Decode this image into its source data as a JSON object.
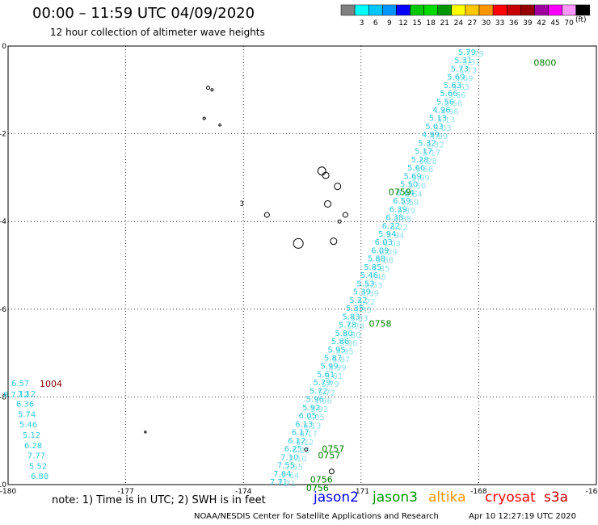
{
  "header": {
    "title": "00:00 – 11:59 UTC 04/09/2020",
    "subtitle": "12 hour collection of altimeter wave heights"
  },
  "color_legend": {
    "unit": "(ft)",
    "swatches": [
      {
        "label": "",
        "color": "#808080"
      },
      {
        "label": "3",
        "color": "#00ffff"
      },
      {
        "label": "6",
        "color": "#00c8ff"
      },
      {
        "label": "9",
        "color": "#0096ff"
      },
      {
        "label": "12",
        "color": "#0000ff"
      },
      {
        "label": "15",
        "color": "#00c800"
      },
      {
        "label": "18",
        "color": "#00dc00"
      },
      {
        "label": "21",
        "color": "#009600"
      },
      {
        "label": "24",
        "color": "#ffff00"
      },
      {
        "label": "27",
        "color": "#ffc800"
      },
      {
        "label": "30",
        "color": "#ff9600"
      },
      {
        "label": "33",
        "color": "#ff0000"
      },
      {
        "label": "36",
        "color": "#c80000"
      },
      {
        "label": "39",
        "color": "#960000"
      },
      {
        "label": "42",
        "color": "#a000a0"
      },
      {
        "label": "45",
        "color": "#ff00ff"
      },
      {
        "label": "70",
        "color": "#ff96ff"
      },
      {
        "label": "",
        "color": "#000000"
      }
    ]
  },
  "map": {
    "lon_range": [
      -180,
      -165
    ],
    "lat_range": [
      -10,
      0
    ],
    "x_ticks": [
      "-180",
      "-177",
      "-174",
      "-171",
      "-168",
      "-16"
    ],
    "y_ticks": [
      "0",
      "-2",
      "-4",
      "-6",
      "-8",
      "-10"
    ],
    "grid": "dotted",
    "track_color": "#33c8dc",
    "time_color": "#008000",
    "track_values": [
      "5.79",
      "5.31",
      "5.73",
      "5.69",
      "5.63",
      "5.66",
      "5.56",
      "4.96",
      "5.13",
      "5.03",
      "4.99",
      "5.32",
      "5.17",
      "5.28",
      "5.66",
      "5.69",
      "5.50",
      "6.64",
      "6.59",
      "6.39",
      "6.38",
      "6.22",
      "5.94",
      "6.03",
      "6.09",
      "5.88",
      "5.85",
      "5.46",
      "5.53",
      "5.39",
      "5.22",
      "5.35",
      "5.83",
      "5.78",
      "5.80",
      "5.86",
      "5.95",
      "5.87",
      "5.99",
      "5.61",
      "5.79",
      "5.72",
      "5.96",
      "5.92",
      "6.05",
      "6.13",
      "6.17",
      "6.12",
      "6.25",
      "7.10",
      "7.55",
      "7.64",
      "7.71"
    ],
    "west_values": [
      "6.57",
      "7.12",
      "6.36",
      "5.74",
      "5.46",
      "5.12",
      "6.28",
      "7.77",
      "5.52",
      "6.88"
    ],
    "time_labels": [
      {
        "text": "0800",
        "lon": -166.6,
        "lat": -0.45
      },
      {
        "text": "0759",
        "lon": -170.3,
        "lat": -3.4
      },
      {
        "text": "0758",
        "lon": -170.8,
        "lat": -6.4
      },
      {
        "text": "0757",
        "lon": -172.0,
        "lat": -9.25
      },
      {
        "text": "0757",
        "lon": -172.1,
        "lat": -9.4
      },
      {
        "text": "0756",
        "lon": -172.3,
        "lat": -9.95
      },
      {
        "text": "0756",
        "lon": -172.4,
        "lat": -10.15
      }
    ],
    "station_label": "1004",
    "station_color": "#800000",
    "west_overlap": "8.7.12",
    "island_label_lon": "3"
  },
  "footer": {
    "note": "note: 1) Time is in UTC; 2) SWH is in feet",
    "satellites": [
      {
        "name": "jason2",
        "color": "#0000ff"
      },
      {
        "name": "jason3",
        "color": "#009600"
      },
      {
        "name": "altika",
        "color": "#ff9600"
      },
      {
        "name": "cryosat",
        "color": "#ff0000"
      },
      {
        "name": "s3a",
        "color": "#c80000"
      }
    ],
    "credit": "NOAA/NESDIS Center for Satellite Applications and Research",
    "timestamp": "Apr 10 12:27:19 UTC 2020"
  }
}
